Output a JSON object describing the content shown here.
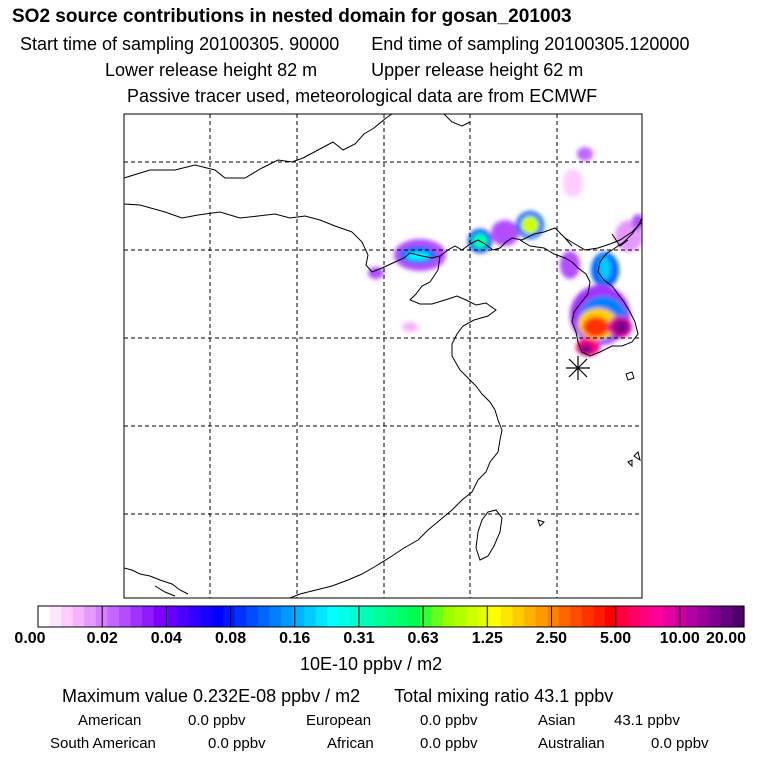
{
  "header": {
    "title": "SO2 source contributions in nested domain for gosan_201003",
    "start_time": "Start time of sampling 20100305. 90000",
    "end_time": "End time of sampling 20100305.120000",
    "lower_height": "Lower release height   82 m",
    "upper_height": "Upper release height   62 m",
    "note": "Passive tracer used, meteorological data are from ECMWF"
  },
  "colorbar": {
    "ticks": [
      "0.00",
      "0.02",
      "0.04",
      "0.08",
      "0.16",
      "0.31",
      "0.63",
      "1.25",
      "2.50",
      "5.00",
      "10.00",
      "20.00"
    ],
    "colors": [
      "#ffffff",
      "#ffe6ff",
      "#ffccff",
      "#f6b3ff",
      "#e699ff",
      "#d580ff",
      "#c466ff",
      "#b34dff",
      "#a233ff",
      "#901aff",
      "#7f00ff",
      "#6600ff",
      "#4d00ff",
      "#3300ff",
      "#1a00ff",
      "#0000ff",
      "#0019ff",
      "#0033ff",
      "#004dff",
      "#0066ff",
      "#0080ff",
      "#0099ff",
      "#00b3ff",
      "#00ccff",
      "#00e6ff",
      "#00ffff",
      "#00ffe6",
      "#00ffcc",
      "#00ffb3",
      "#00ff99",
      "#00ff80",
      "#00ff66",
      "#00ff4d",
      "#33ff33",
      "#66ff1a",
      "#99ff00",
      "#b3ff00",
      "#ccff00",
      "#e6ff00",
      "#ffff00",
      "#ffe600",
      "#ffcc00",
      "#ffb300",
      "#ff9900",
      "#ff8000",
      "#ff6600",
      "#ff4d00",
      "#ff3300",
      "#ff1a00",
      "#ff0000",
      "#ff0040",
      "#ff0066",
      "#ff0080",
      "#ff0099",
      "#e6009e",
      "#cc00a0",
      "#b300a0",
      "#99009a",
      "#800090",
      "#660080",
      "#4d0066"
    ],
    "unit": "10E-10 ppbv / m2"
  },
  "stats": {
    "maximum": "Maximum value  0.232E-08 ppbv / m2",
    "total": "Total mixing ratio      43.1 ppbv"
  },
  "regions": [
    {
      "label": "American",
      "value": "0.0 ppbv"
    },
    {
      "label": "European",
      "value": "0.0 ppbv"
    },
    {
      "label": "Asian",
      "value": "43.1 ppbv"
    },
    {
      "label": "South American",
      "value": "0.0 ppbv"
    },
    {
      "label": "African",
      "value": "0.0 ppbv"
    },
    {
      "label": "Australian",
      "value": "0.0 ppbv"
    }
  ]
}
